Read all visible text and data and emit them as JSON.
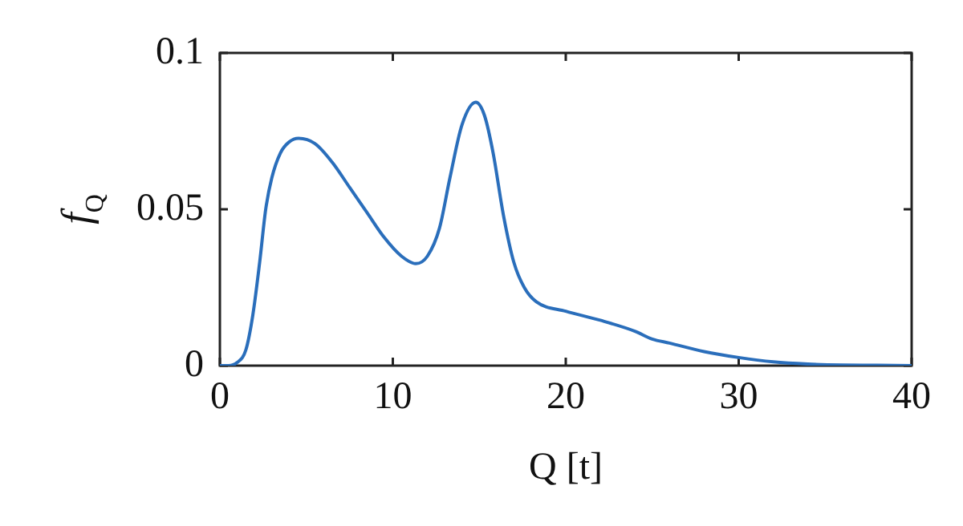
{
  "chart_data": {
    "type": "line",
    "xlabel": "Q [t]",
    "ylabel": "f$_{Q}$",
    "series": [
      {
        "color": "#2a6ebb",
        "x": [
          0,
          0.5,
          1.0,
          1.5,
          1.9,
          2.3,
          2.65,
          3.0,
          3.5,
          4.0,
          4.55,
          5.5,
          6.5,
          7.5,
          8.5,
          9.5,
          10.5,
          11.33,
          12,
          12.7,
          13.3,
          14,
          14.8,
          15.3,
          15.8,
          16.4,
          17,
          17.6,
          18.3,
          20,
          22,
          24,
          25,
          26,
          28,
          30,
          32,
          34,
          36,
          38,
          40
        ],
        "values": [
          0,
          0,
          0.001,
          0.005,
          0.016,
          0.033,
          0.05,
          0.06,
          0.068,
          0.0715,
          0.0727,
          0.071,
          0.065,
          0.057,
          0.049,
          0.041,
          0.035,
          0.0326,
          0.035,
          0.044,
          0.06,
          0.077,
          0.0842,
          0.08,
          0.068,
          0.048,
          0.033,
          0.025,
          0.0204,
          0.0174,
          0.0145,
          0.011,
          0.0085,
          0.0072,
          0.0045,
          0.0026,
          0.0012,
          0.0005,
          0.0002,
          0.0001,
          0
        ]
      }
    ],
    "xlim": [
      0,
      40
    ],
    "xticks": [
      0,
      10,
      20,
      30,
      40
    ],
    "ylim": [
      0,
      0.1
    ],
    "yticks": [
      0,
      0.05,
      0.1
    ],
    "grid": false,
    "legend": false,
    "marker": "none",
    "line_style": "solid"
  }
}
